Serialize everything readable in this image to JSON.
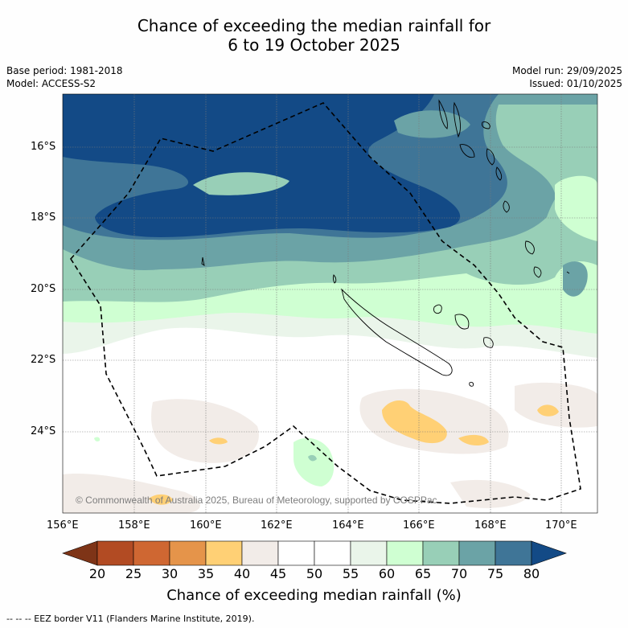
{
  "title_line1": "Chance of exceeding the median rainfall for",
  "title_line2": "6 to 19 October 2025",
  "base_period": "Base period: 1981-2018",
  "model": "Model: ACCESS-S2",
  "model_run": "Model run: 29/09/2025",
  "issued": "Issued: 01/10/2025",
  "copyright": "© Commonwealth of Australia 2025, Bureau of Meteorology, supported by COSPPac",
  "lat_labels": [
    "16°S",
    "18°S",
    "20°S",
    "22°S",
    "24°S"
  ],
  "lon_labels": [
    "156°E",
    "158°E",
    "160°E",
    "162°E",
    "164°E",
    "166°E",
    "168°E",
    "170°E"
  ],
  "colorbar": {
    "labels": [
      "20",
      "25",
      "30",
      "35",
      "40",
      "45",
      "50",
      "55",
      "60",
      "65",
      "70",
      "75",
      "80"
    ],
    "colors": [
      "#7e3417",
      "#b24b23",
      "#cf6732",
      "#e5944a",
      "#ffd075",
      "#f2ece8",
      "#ffffff",
      "#ffffff",
      "#eaf5ea",
      "#cfffd2",
      "#98cfb7",
      "#6ba3a6",
      "#3f7597",
      "#134a86"
    ],
    "title": "Chance of exceeding median rainfall (%)"
  },
  "legend_footer": "--  --  -- EEZ border V11 (Flanders Marine Institute, 2019)."
}
